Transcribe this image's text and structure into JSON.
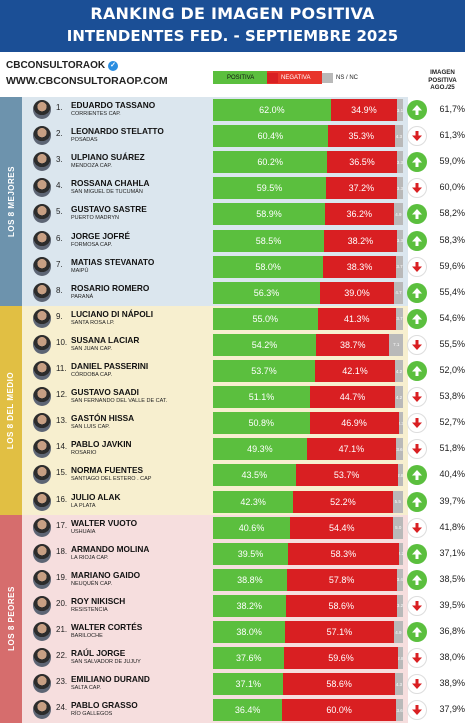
{
  "header": {
    "title_line1": "RANKING DE IMAGEN POSITIVA",
    "title_line2": "INTENDENTES FED. - SEPTIEMBRE 2025"
  },
  "brand": {
    "handle": "CBCONSULTORAOK",
    "website": "WWW.CBCONSULTORAOP.COM"
  },
  "legend": {
    "positive": "POSITIVA",
    "negative": "NEGATIVA",
    "ns_nc": "NS / NC",
    "prev_header": "IMAGEN POSITIVA AGO./25"
  },
  "colors": {
    "header_bg": "#1b4f96",
    "positive": "#5bbf3e",
    "negative": "#d91f22",
    "ns": "#b9b9b9",
    "group_top": "#dbe6ee",
    "group_mid": "#f7efcf",
    "group_bottom": "#f6dede"
  },
  "groups": [
    {
      "label": "LOS 8 MEJORES",
      "bg": "#dbe6ee",
      "tab": "#6d93ad"
    },
    {
      "label": "LOS 8 DEL MEDIO",
      "bg": "#f7efcf",
      "tab": "#e1bf43"
    },
    {
      "label": "LOS 8 PEORES",
      "bg": "#f6dede",
      "tab": "#d66d6d"
    }
  ],
  "chart_data": {
    "type": "bar",
    "title": "RANKING DE IMAGEN POSITIVA INTENDENTES FED. - SEPTIEMBRE 2025",
    "ylim": [
      0,
      100
    ],
    "series": [
      {
        "name": "POSITIVA",
        "color": "#5bbf3e"
      },
      {
        "name": "NEGATIVA",
        "color": "#d91f22"
      },
      {
        "name": "NS / NC",
        "color": "#b9b9b9"
      }
    ],
    "rows": [
      {
        "rank": "1.",
        "name": "EDUARDO TASSANO",
        "city": "CORRIENTES CAP.",
        "pos": 62.0,
        "neg": 34.9,
        "ns": 3.1,
        "pos_label": "62.0%",
        "neg_label": "34.9%",
        "ns_label": "3.1",
        "trend": "up",
        "prev_label": "61,7%"
      },
      {
        "rank": "2.",
        "name": "LEONARDO STELATTO",
        "city": "POSADAS",
        "pos": 60.4,
        "neg": 35.3,
        "ns": 4.3,
        "pos_label": "60.4%",
        "neg_label": "35.3%",
        "ns_label": "4.3",
        "trend": "down",
        "prev_label": "61,3%"
      },
      {
        "rank": "3.",
        "name": "ULPIANO SUÁREZ",
        "city": "MENDOZA CAP.",
        "pos": 60.2,
        "neg": 36.5,
        "ns": 3.3,
        "pos_label": "60.2%",
        "neg_label": "36.5%",
        "ns_label": "3.3",
        "trend": "up",
        "prev_label": "59,0%"
      },
      {
        "rank": "4.",
        "name": "ROSSANA CHAHLA",
        "city": "SAN MIGUEL DE TUCUMÁN",
        "pos": 59.5,
        "neg": 37.2,
        "ns": 3.3,
        "pos_label": "59.5%",
        "neg_label": "37.2%",
        "ns_label": "3.3",
        "trend": "down",
        "prev_label": "60,0%"
      },
      {
        "rank": "5.",
        "name": "GUSTAVO SASTRE",
        "city": "PUERTO MADRYN",
        "pos": 58.9,
        "neg": 36.2,
        "ns": 4.9,
        "pos_label": "58.9%",
        "neg_label": "36.2%",
        "ns_label": "4.9",
        "trend": "up",
        "prev_label": "58,2%"
      },
      {
        "rank": "6.",
        "name": "JORGE JOFRÉ",
        "city": "FORMOSA CAP.",
        "pos": 58.5,
        "neg": 38.2,
        "ns": 3.3,
        "pos_label": "58.5%",
        "neg_label": "38.2%",
        "ns_label": "3.3",
        "trend": "up",
        "prev_label": "58,3%"
      },
      {
        "rank": "7.",
        "name": "MATIAS STEVANATO",
        "city": "MAIPÚ",
        "pos": 58.0,
        "neg": 38.3,
        "ns": 3.7,
        "pos_label": "58.0%",
        "neg_label": "38.3%",
        "ns_label": "3.7",
        "trend": "down",
        "prev_label": "59,6%"
      },
      {
        "rank": "8.",
        "name": "ROSARIO ROMERO",
        "city": "PARANÁ",
        "pos": 56.3,
        "neg": 39.0,
        "ns": 4.7,
        "pos_label": "56.3%",
        "neg_label": "39.0%",
        "ns_label": "4.7",
        "trend": "up",
        "prev_label": "55,4%"
      },
      {
        "rank": "9.",
        "name": "LUCIANO DI NÁPOLI",
        "city": "SANTA ROSA LP.",
        "pos": 55.0,
        "neg": 41.3,
        "ns": 3.7,
        "pos_label": "55.0%",
        "neg_label": "41.3%",
        "ns_label": "3.7",
        "trend": "up",
        "prev_label": "54,6%"
      },
      {
        "rank": "10.",
        "name": "SUSANA LACIAR",
        "city": "SAN JUAN CAP.",
        "pos": 54.2,
        "neg": 38.7,
        "ns": 7.1,
        "pos_label": "54.2%",
        "neg_label": "38.7%",
        "ns_label": "7.1",
        "trend": "down",
        "prev_label": "55,5%"
      },
      {
        "rank": "11.",
        "name": "DANIEL PASSERINI",
        "city": "CÓRDOBA CAP.",
        "pos": 53.7,
        "neg": 42.1,
        "ns": 4.2,
        "pos_label": "53.7%",
        "neg_label": "42.1%",
        "ns_label": "4.2",
        "trend": "up",
        "prev_label": "52,0%"
      },
      {
        "rank": "12.",
        "name": "GUSTAVO SAADI",
        "city": "SAN FERNANDO DEL VALLE DE CAT.",
        "pos": 51.1,
        "neg": 44.7,
        "ns": 4.2,
        "pos_label": "51.1%",
        "neg_label": "44.7%",
        "ns_label": "4.2",
        "trend": "down",
        "prev_label": "53,8%"
      },
      {
        "rank": "13.",
        "name": "GASTÓN HISSA",
        "city": "SAN LUIS CAP.",
        "pos": 50.8,
        "neg": 46.9,
        "ns": 2.3,
        "pos_label": "50.8%",
        "neg_label": "46.9%",
        "ns_label": "2.3",
        "trend": "down",
        "prev_label": "52,7%"
      },
      {
        "rank": "14.",
        "name": "PABLO JAVKIN",
        "city": "ROSARIO",
        "pos": 49.3,
        "neg": 47.1,
        "ns": 3.6,
        "pos_label": "49.3%",
        "neg_label": "47.1%",
        "ns_label": "3.6",
        "trend": "down",
        "prev_label": "51,8%"
      },
      {
        "rank": "15.",
        "name": "NORMA FUENTES",
        "city": "SANTIAGO DEL ESTERO . CAP",
        "pos": 43.5,
        "neg": 53.7,
        "ns": 2.8,
        "pos_label": "43.5%",
        "neg_label": "53.7%",
        "ns_label": "2.8",
        "trend": "up",
        "prev_label": "40,4%"
      },
      {
        "rank": "16.",
        "name": "JULIO ALAK",
        "city": "LA PLATA",
        "pos": 42.3,
        "neg": 52.2,
        "ns": 5.5,
        "pos_label": "42.3%",
        "neg_label": "52.2%",
        "ns_label": "5.5",
        "trend": "up",
        "prev_label": "39,7%"
      },
      {
        "rank": "17.",
        "name": "WALTER VUOTO",
        "city": "USHUAIA",
        "pos": 40.6,
        "neg": 54.4,
        "ns": 5.0,
        "pos_label": "40.6%",
        "neg_label": "54.4%",
        "ns_label": "5.0",
        "trend": "down",
        "prev_label": "41,8%"
      },
      {
        "rank": "18.",
        "name": "ARMANDO MOLINA",
        "city": "LA RIOJA CAP.",
        "pos": 39.5,
        "neg": 58.3,
        "ns": 2.2,
        "pos_label": "39.5%",
        "neg_label": "58.3%",
        "ns_label": "2.2",
        "trend": "up",
        "prev_label": "37,1%"
      },
      {
        "rank": "19.",
        "name": "MARIANO GAIDO",
        "city": "NEUQUÉN CAP.",
        "pos": 38.8,
        "neg": 57.8,
        "ns": 3.4,
        "pos_label": "38.8%",
        "neg_label": "57.8%",
        "ns_label": "3.4",
        "trend": "up",
        "prev_label": "38,5%"
      },
      {
        "rank": "20.",
        "name": "ROY NIKISCH",
        "city": "RESISTENCIA",
        "pos": 38.2,
        "neg": 58.6,
        "ns": 3.2,
        "pos_label": "38.2%",
        "neg_label": "58.6%",
        "ns_label": "3.2",
        "trend": "down",
        "prev_label": "39,5%"
      },
      {
        "rank": "21.",
        "name": "WALTER CORTÉS",
        "city": "BARILOCHE",
        "pos": 38.0,
        "neg": 57.1,
        "ns": 4.9,
        "pos_label": "38.0%",
        "neg_label": "57.1%",
        "ns_label": "4.9",
        "trend": "up",
        "prev_label": "36,8%"
      },
      {
        "rank": "22.",
        "name": "RAÚL JORGE",
        "city": "SAN SALVADOR DE JUJUY",
        "pos": 37.6,
        "neg": 59.6,
        "ns": 2.8,
        "pos_label": "37.6%",
        "neg_label": "59.6%",
        "ns_label": "2.8",
        "trend": "down",
        "prev_label": "38,0%"
      },
      {
        "rank": "23.",
        "name": "EMILIANO DURAND",
        "city": "SALTA CAP.",
        "pos": 37.1,
        "neg": 58.6,
        "ns": 4.3,
        "pos_label": "37.1%",
        "neg_label": "58.6%",
        "ns_label": "4.3",
        "trend": "down",
        "prev_label": "38,9%"
      },
      {
        "rank": "24.",
        "name": "PABLO GRASSO",
        "city": "RÍO GALLEGOS",
        "pos": 36.4,
        "neg": 60.0,
        "ns": 3.6,
        "pos_label": "36.4%",
        "neg_label": "60.0%",
        "ns_label": "3.6",
        "trend": "down",
        "prev_label": "37,9%"
      }
    ]
  }
}
